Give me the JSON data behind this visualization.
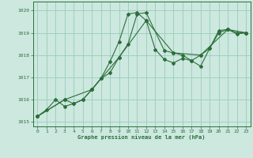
{
  "title": "Graphe pression niveau de la mer (hPa)",
  "bg_color": "#cce8df",
  "grid_color": "#99ccbb",
  "line_color": "#2d6e3a",
  "marker_color": "#2d6e3a",
  "xlim": [
    -0.5,
    23.5
  ],
  "ylim": [
    1014.8,
    1020.4
  ],
  "xticks": [
    0,
    1,
    2,
    3,
    4,
    5,
    6,
    7,
    8,
    9,
    10,
    11,
    12,
    13,
    14,
    15,
    16,
    17,
    18,
    19,
    20,
    21,
    22,
    23
  ],
  "yticks": [
    1015,
    1016,
    1017,
    1018,
    1019,
    1020
  ],
  "series1_x": [
    0,
    1,
    2,
    3,
    4,
    5,
    6,
    7,
    8,
    9,
    10,
    11,
    12,
    13,
    14,
    15,
    16,
    17,
    18,
    19,
    20,
    21,
    22,
    23
  ],
  "series1_y": [
    1015.25,
    1015.55,
    1016.0,
    1015.7,
    1015.82,
    1016.0,
    1016.45,
    1016.95,
    1017.7,
    1018.6,
    1019.85,
    1019.9,
    1019.55,
    1018.25,
    1017.8,
    1017.65,
    1017.85,
    1017.75,
    1017.5,
    1018.3,
    1019.1,
    1019.15,
    1018.95,
    1019.0
  ],
  "series2_x": [
    0,
    3,
    4,
    5,
    6,
    7,
    8,
    9,
    10,
    11,
    12,
    14,
    15,
    16,
    17,
    18,
    19,
    20,
    21,
    22,
    23
  ],
  "series2_y": [
    1015.25,
    1016.0,
    1015.82,
    1016.0,
    1016.45,
    1016.95,
    1017.2,
    1017.9,
    1018.5,
    1019.85,
    1019.9,
    1018.2,
    1018.1,
    1018.0,
    1017.75,
    1018.0,
    1018.3,
    1019.0,
    1019.15,
    1019.0,
    1019.0
  ],
  "series3_x": [
    0,
    3,
    6,
    9,
    12,
    15,
    18,
    21,
    23
  ],
  "series3_y": [
    1015.25,
    1016.0,
    1016.45,
    1017.9,
    1019.55,
    1018.1,
    1018.0,
    1019.15,
    1019.0
  ]
}
